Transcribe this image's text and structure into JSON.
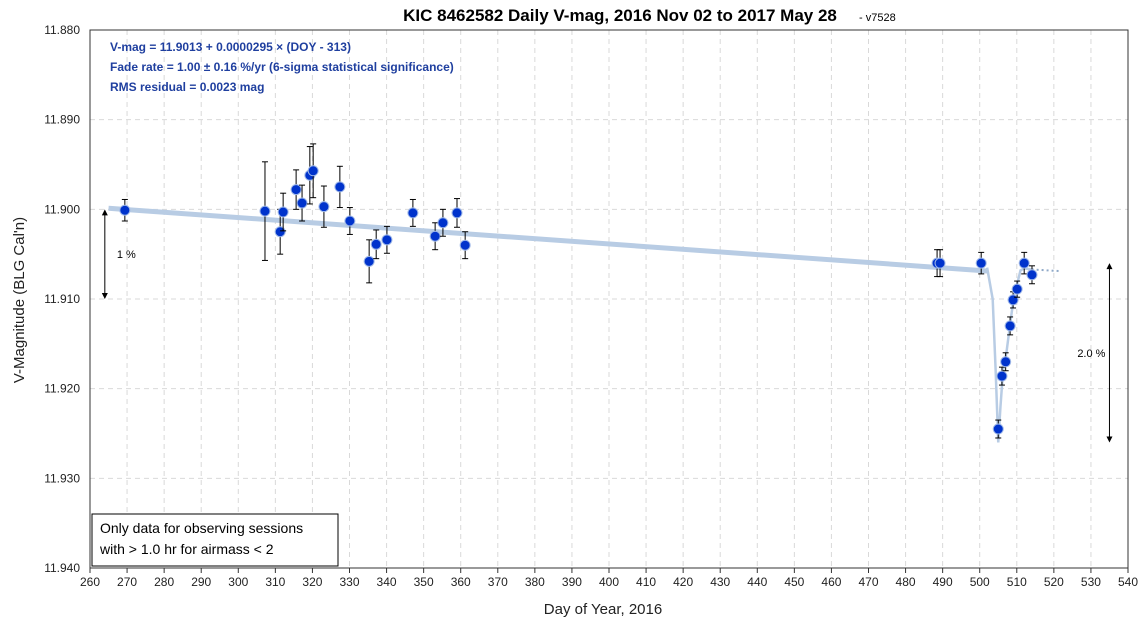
{
  "chart_data": {
    "type": "scatter",
    "title": "KIC 8462582 Daily V-mag, 2016 Nov 02 to 2017 May 28",
    "title_suffix": "- v7528",
    "xlabel": "Day of Year, 2016",
    "ylabel": "V-Magnitude (BLG Cal'n)",
    "xlim": [
      260,
      540
    ],
    "ylim": [
      11.88,
      11.94
    ],
    "y_inverted": true,
    "x_ticks": [
      260,
      270,
      280,
      290,
      300,
      310,
      320,
      330,
      340,
      350,
      360,
      370,
      380,
      390,
      400,
      410,
      420,
      430,
      440,
      450,
      460,
      470,
      480,
      490,
      500,
      510,
      520,
      530,
      540
    ],
    "y_ticks": [
      "11.880",
      "11.890",
      "11.900",
      "11.910",
      "11.920",
      "11.930",
      "11.940"
    ],
    "grid": true,
    "annotations": [
      "V-mag = 11.9013 + 0.0000295 × (DOY - 313)",
      "Fade rate = 1.00 ± 0.16 %/yr  (6-sigma statistical significance)",
      "RMS residual = 0.0023 mag"
    ],
    "note_box": [
      "Only data for observing sessions",
      "with > 1.0 hr for airmass < 2"
    ],
    "arrow_1": {
      "label": "1 %",
      "x": 264,
      "from": 11.9,
      "to": 11.91
    },
    "arrow_2": {
      "label": "2.0 %",
      "x": 535,
      "from": 11.906,
      "to": 11.926
    },
    "fit": {
      "intercept": 11.9013,
      "slope": 2.95e-05,
      "ref_doy": 313,
      "x_start": 265,
      "x_end": 502
    },
    "dip_curve": [
      [
        502,
        11.9065
      ],
      [
        503.5,
        11.91
      ],
      [
        504.3,
        11.918
      ],
      [
        505,
        11.926
      ],
      [
        505.6,
        11.922
      ],
      [
        506.3,
        11.918
      ],
      [
        507.2,
        11.916
      ],
      [
        508.3,
        11.9125
      ],
      [
        509.3,
        11.9095
      ],
      [
        510.3,
        11.908
      ],
      [
        511,
        11.9068
      ],
      [
        512,
        11.9066
      ],
      [
        514,
        11.9067
      ]
    ],
    "dotted_extension": [
      [
        514,
        11.9067
      ],
      [
        522,
        11.9069
      ]
    ],
    "colors": {
      "points": "#0033cc",
      "fit": "#b8cce4",
      "annotation": "#1f3f9f"
    },
    "points": [
      {
        "x": 269.4,
        "y": 11.9001,
        "err": 0.0012
      },
      {
        "x": 307.2,
        "y": 11.9002,
        "err": 0.0055
      },
      {
        "x": 311.3,
        "y": 11.9025,
        "err": 0.0025
      },
      {
        "x": 312.1,
        "y": 11.9003,
        "err": 0.0021
      },
      {
        "x": 315.6,
        "y": 11.8978,
        "err": 0.0022
      },
      {
        "x": 317.2,
        "y": 11.8993,
        "err": 0.002
      },
      {
        "x": 319.3,
        "y": 11.8962,
        "err": 0.0032
      },
      {
        "x": 320.2,
        "y": 11.8957,
        "err": 0.003
      },
      {
        "x": 323.1,
        "y": 11.8997,
        "err": 0.0023
      },
      {
        "x": 327.4,
        "y": 11.8975,
        "err": 0.0023
      },
      {
        "x": 330.1,
        "y": 11.9013,
        "err": 0.0015
      },
      {
        "x": 335.3,
        "y": 11.9058,
        "err": 0.0024
      },
      {
        "x": 337.2,
        "y": 11.9039,
        "err": 0.0016
      },
      {
        "x": 340.1,
        "y": 11.9034,
        "err": 0.0015
      },
      {
        "x": 347.1,
        "y": 11.9004,
        "err": 0.0015
      },
      {
        "x": 353.1,
        "y": 11.903,
        "err": 0.0015
      },
      {
        "x": 355.2,
        "y": 11.9015,
        "err": 0.0015
      },
      {
        "x": 359.0,
        "y": 11.9004,
        "err": 0.0016
      },
      {
        "x": 361.2,
        "y": 11.904,
        "err": 0.0015
      },
      {
        "x": 488.5,
        "y": 11.906,
        "err": 0.0015
      },
      {
        "x": 489.3,
        "y": 11.906,
        "err": 0.0015
      },
      {
        "x": 500.4,
        "y": 11.906,
        "err": 0.0012
      },
      {
        "x": 505.0,
        "y": 11.9245,
        "err": 0.001
      },
      {
        "x": 506.0,
        "y": 11.9186,
        "err": 0.001
      },
      {
        "x": 507.0,
        "y": 11.917,
        "err": 0.001
      },
      {
        "x": 508.2,
        "y": 11.913,
        "err": 0.001
      },
      {
        "x": 509.0,
        "y": 11.9101,
        "err": 0.0009
      },
      {
        "x": 510.1,
        "y": 11.9089,
        "err": 0.0009
      },
      {
        "x": 512.0,
        "y": 11.906,
        "err": 0.0012
      },
      {
        "x": 514.1,
        "y": 11.9073,
        "err": 0.001
      }
    ]
  }
}
